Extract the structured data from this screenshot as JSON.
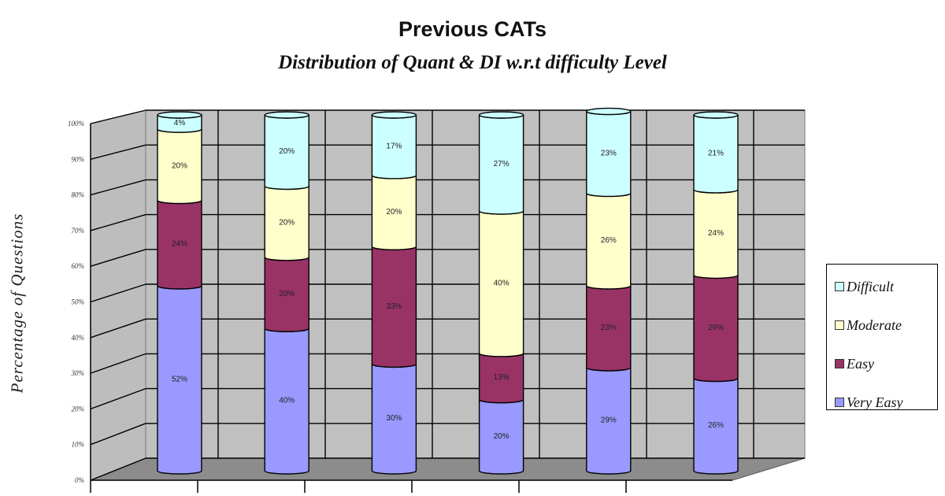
{
  "chart_data": {
    "type": "bar",
    "stacked": true,
    "percent_stacked": true,
    "three_d": true,
    "title": "Previous CATs",
    "subtitle": "Distribution of Quant & DI w.r.t difficulty Level",
    "xlabel": "",
    "ylabel": "Percentage of Questions",
    "ylim": [
      0,
      100
    ],
    "ytick_labels": [
      "0%",
      "10%",
      "20%",
      "30%",
      "40%",
      "50%",
      "60%",
      "70%",
      "80%",
      "90%",
      "100%"
    ],
    "categories": [
      "",
      "",
      "",
      "",
      "",
      ""
    ],
    "grid": true,
    "legend_position": "right",
    "series": [
      {
        "name": "Very Easy",
        "color": "#9999ff",
        "values": [
          52,
          40,
          30,
          20,
          29,
          26
        ],
        "labels": [
          "52%",
          "40%",
          "30%",
          "20%",
          "29%",
          "26%"
        ]
      },
      {
        "name": "Easy",
        "color": "#993366",
        "values": [
          24,
          20,
          33,
          13,
          23,
          29
        ],
        "labels": [
          "24%",
          "20%",
          "33%",
          "13%",
          "23%",
          "29%"
        ]
      },
      {
        "name": "Moderate",
        "color": "#ffffcc",
        "values": [
          20,
          20,
          20,
          40,
          26,
          24
        ],
        "labels": [
          "20%",
          "20%",
          "20%",
          "40%",
          "26%",
          "24%"
        ]
      },
      {
        "name": "Difficult",
        "color": "#ccffff",
        "values": [
          4,
          20,
          17,
          27,
          23,
          21
        ],
        "labels": [
          "4%",
          "20%",
          "17%",
          "27%",
          "23%",
          "21%"
        ]
      }
    ],
    "legend": [
      "Difficult",
      "Moderate",
      "Easy",
      "Very Easy"
    ]
  }
}
